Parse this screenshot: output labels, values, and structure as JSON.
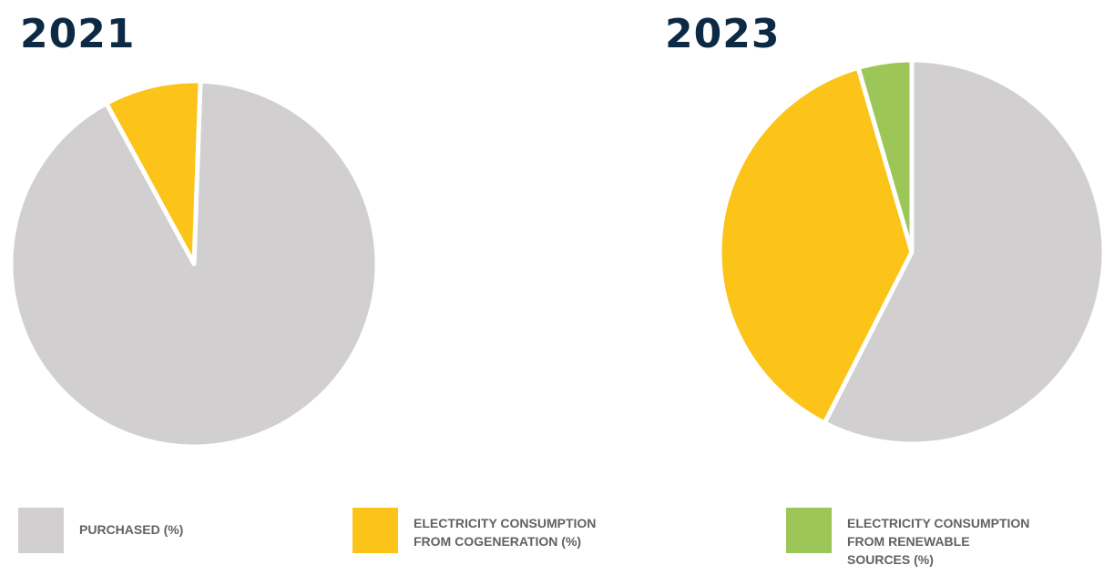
{
  "colors": {
    "purchased": "#d1cfd0",
    "cogeneration": "#fcc419",
    "renewable": "#9cc758",
    "title": "#0d2a45",
    "legend_text": "#5f6266"
  },
  "legend": [
    {
      "key": "purchased",
      "label": "PURCHASED (%)"
    },
    {
      "key": "cogeneration",
      "label": "ELECTRICITY CONSUMPTION\nFROM COGENERATION (%)"
    },
    {
      "key": "renewable",
      "label": "ELECTRICITY CONSUMPTION\nFROM RENEWABLE\nSOURCES (%)"
    }
  ],
  "chart_data": [
    {
      "type": "pie",
      "title": "2021",
      "slices": [
        {
          "key": "purchased",
          "label": "PURCHASED (%)",
          "value": 91.5
        },
        {
          "key": "cogeneration",
          "label": "ELECTRICITY CONSUMPTION FROM COGENERATION (%)",
          "value": 8.5
        }
      ]
    },
    {
      "type": "pie",
      "title": "2023",
      "slices": [
        {
          "key": "purchased",
          "label": "PURCHASED (%)",
          "value": 57.5
        },
        {
          "key": "cogeneration",
          "label": "ELECTRICITY CONSUMPTION FROM COGENERATION (%)",
          "value": 38
        },
        {
          "key": "renewable",
          "label": "ELECTRICITY CONSUMPTION FROM RENEWABLE SOURCES (%)",
          "value": 4.5
        }
      ]
    }
  ]
}
